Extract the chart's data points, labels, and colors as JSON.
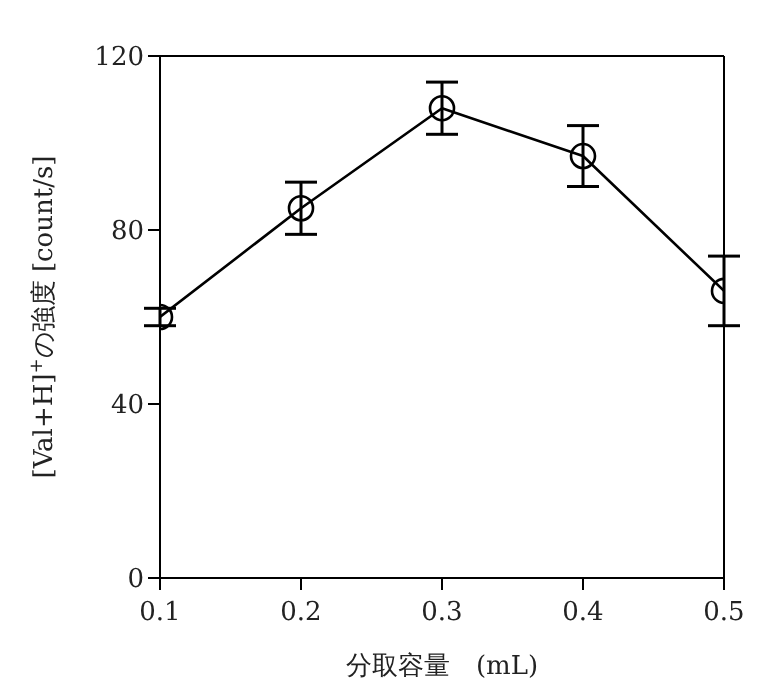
{
  "chart_data": {
    "type": "line",
    "xlabel": "分取容量　(mL)",
    "ylabel": "[Val+H]$^{+}$の強度 [count/s]",
    "x": [
      0.1,
      0.2,
      0.3,
      0.4,
      0.5
    ],
    "series": [
      {
        "color": "#000000",
        "values": [
          60,
          85,
          108,
          97,
          66
        ],
        "errors": [
          2,
          6,
          6,
          7,
          8
        ]
      }
    ],
    "xlim": [
      0.1,
      0.5
    ],
    "xticks": [
      0.1,
      0.2,
      0.3,
      0.4,
      0.5
    ],
    "ylim": [
      0,
      120
    ],
    "yticks": [
      0,
      40,
      80,
      120
    ],
    "marker": "circle",
    "line_style": "solid"
  }
}
